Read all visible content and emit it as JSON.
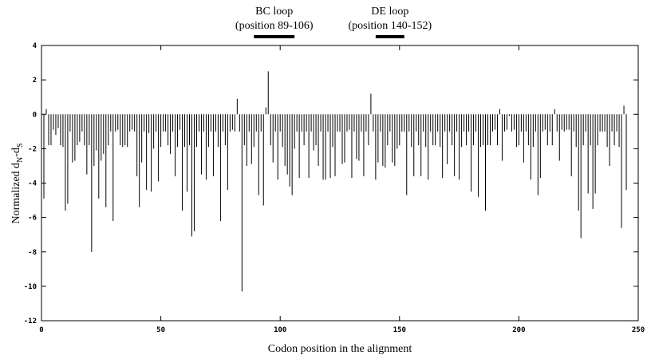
{
  "chart_data": {
    "type": "impulse",
    "ylabel": [
      "Normalized d",
      "N",
      "-d",
      "S"
    ],
    "xlabel": "Codon position in the alignment",
    "annotations": [
      {
        "lines": [
          "BC loop",
          "(position 89-106)"
        ],
        "range": [
          89,
          106
        ]
      },
      {
        "lines": [
          "DE loop",
          "(position 140-152)"
        ],
        "range": [
          140,
          152
        ]
      }
    ],
    "color": "#000000",
    "xlim": [
      0,
      250
    ],
    "xticks": [
      0,
      50,
      100,
      150,
      200,
      250
    ],
    "ylim": [
      -12,
      4
    ],
    "yticks": [
      4,
      2,
      0,
      -2,
      -4,
      -6,
      -8,
      -10,
      -12
    ],
    "x": [
      1,
      2,
      3,
      4,
      5,
      6,
      7,
      8,
      9,
      10,
      11,
      12,
      13,
      14,
      15,
      16,
      17,
      18,
      19,
      20,
      21,
      22,
      23,
      24,
      25,
      26,
      27,
      28,
      29,
      30,
      31,
      32,
      33,
      34,
      35,
      36,
      37,
      38,
      39,
      40,
      41,
      42,
      43,
      44,
      45,
      46,
      47,
      48,
      49,
      50,
      51,
      52,
      53,
      54,
      55,
      56,
      57,
      58,
      59,
      60,
      61,
      62,
      63,
      64,
      65,
      66,
      67,
      68,
      69,
      70,
      71,
      72,
      73,
      74,
      75,
      76,
      77,
      78,
      79,
      80,
      81,
      82,
      83,
      84,
      85,
      86,
      87,
      88,
      89,
      90,
      91,
      92,
      93,
      94,
      95,
      96,
      97,
      98,
      99,
      100,
      101,
      102,
      103,
      104,
      105,
      106,
      107,
      108,
      109,
      110,
      111,
      112,
      113,
      114,
      115,
      116,
      117,
      118,
      119,
      120,
      121,
      122,
      123,
      124,
      125,
      126,
      127,
      128,
      129,
      130,
      131,
      132,
      133,
      134,
      135,
      136,
      137,
      138,
      139,
      140,
      141,
      142,
      143,
      144,
      145,
      146,
      147,
      148,
      149,
      150,
      151,
      152,
      153,
      154,
      155,
      156,
      157,
      158,
      159,
      160,
      161,
      162,
      163,
      164,
      165,
      166,
      167,
      168,
      169,
      170,
      171,
      172,
      173,
      174,
      175,
      176,
      177,
      178,
      179,
      180,
      181,
      182,
      183,
      184,
      185,
      186,
      187,
      188,
      189,
      190,
      191,
      192,
      193,
      194,
      195,
      196,
      197,
      198,
      199,
      200,
      201,
      202,
      203,
      204,
      205,
      206,
      207,
      208,
      209,
      210,
      211,
      212,
      213,
      214,
      215,
      216,
      217,
      218,
      219,
      220,
      221,
      222,
      223,
      224,
      225,
      226,
      227,
      228,
      229,
      230,
      231,
      232,
      233,
      234,
      235,
      236,
      237,
      238,
      239,
      240,
      241,
      242,
      243,
      244,
      245
    ],
    "values": [
      -4.9,
      0.3,
      -1.8,
      -1.8,
      -0.9,
      -1.2,
      -0.8,
      -1.8,
      -1.9,
      -5.6,
      -5.2,
      -1.0,
      -2.8,
      -2.7,
      -1.8,
      -1.6,
      -1.0,
      -1.8,
      -3.5,
      -1.8,
      -8.0,
      -3.0,
      -2.1,
      -4.9,
      -2.7,
      -2.3,
      -5.4,
      -1.8,
      -1.0,
      -6.2,
      -1.0,
      -0.9,
      -1.8,
      -1.9,
      -1.8,
      -1.9,
      -1.0,
      -0.9,
      -1.0,
      -3.6,
      -5.4,
      -2.8,
      -1.0,
      -4.4,
      -1.1,
      -4.5,
      -2.0,
      -1.0,
      -3.9,
      -1.9,
      -1.0,
      -1.0,
      -1.8,
      -2.3,
      -1.0,
      -3.6,
      -1.9,
      -0.9,
      -5.6,
      -1.9,
      -4.5,
      -1.8,
      -7.1,
      -6.8,
      -1.9,
      -1.0,
      -3.5,
      -1.0,
      -3.8,
      -1.9,
      -1.0,
      -3.6,
      -1.0,
      -1.9,
      -6.2,
      -1.0,
      -1.8,
      -4.4,
      -1.0,
      -0.9,
      -1.0,
      0.9,
      -1.0,
      -10.3,
      -1.8,
      -3.0,
      -1.0,
      -2.9,
      -1.9,
      -1.0,
      -4.7,
      -1.0,
      -5.3,
      0.4,
      2.5,
      -1.8,
      -2.8,
      -1.0,
      -3.8,
      -1.0,
      -1.9,
      -3.0,
      -3.5,
      -4.2,
      -4.7,
      -2.0,
      -1.0,
      -3.7,
      -1.0,
      -1.8,
      -1.0,
      -3.7,
      -1.0,
      -2.1,
      -1.8,
      -3.0,
      -1.0,
      -3.8,
      -3.8,
      -1.0,
      -3.7,
      -1.9,
      -3.6,
      -1.0,
      -1.0,
      -2.9,
      -2.8,
      -1.0,
      -0.9,
      -3.7,
      -1.0,
      -2.6,
      -2.7,
      -1.0,
      -3.6,
      -1.0,
      -1.8,
      1.2,
      -1.0,
      -3.8,
      -2.8,
      -1.0,
      -3.0,
      -3.1,
      -1.8,
      -1.0,
      -2.8,
      -3.0,
      -2.0,
      -1.8,
      -1.0,
      -1.0,
      -4.7,
      -1.0,
      -1.9,
      -3.6,
      -1.0,
      -1.8,
      -3.6,
      -1.0,
      -1.9,
      -3.8,
      -1.0,
      -1.8,
      -1.8,
      -1.0,
      -1.9,
      -3.7,
      -1.0,
      -2.9,
      -1.0,
      -1.8,
      -3.6,
      -1.0,
      -3.8,
      -1.9,
      -1.0,
      -1.8,
      -1.0,
      -4.5,
      -1.8,
      -1.0,
      -4.8,
      -1.9,
      -1.8,
      -5.6,
      -1.8,
      -1.8,
      -1.0,
      -0.9,
      -1.8,
      0.3,
      -2.7,
      -1.0,
      -0.9,
      -0.1,
      -1.0,
      -0.9,
      -1.9,
      -1.8,
      -1.0,
      -2.8,
      -1.0,
      -1.8,
      -3.8,
      -1.9,
      -1.0,
      -4.7,
      -3.7,
      -1.0,
      -0.9,
      -1.8,
      -1.0,
      -1.8,
      0.3,
      -1.0,
      -2.7,
      -0.9,
      -1.0,
      -0.9,
      -0.9,
      -3.6,
      -1.0,
      -1.9,
      -5.6,
      -7.2,
      -1.8,
      -1.0,
      -4.6,
      -1.8,
      -5.5,
      -4.6,
      -1.8,
      -1.0,
      -1.0,
      -1.0,
      -1.9,
      -3.0,
      -1.0,
      -1.8,
      -1.0,
      -1.9,
      -6.6,
      0.5,
      -4.4
    ]
  }
}
